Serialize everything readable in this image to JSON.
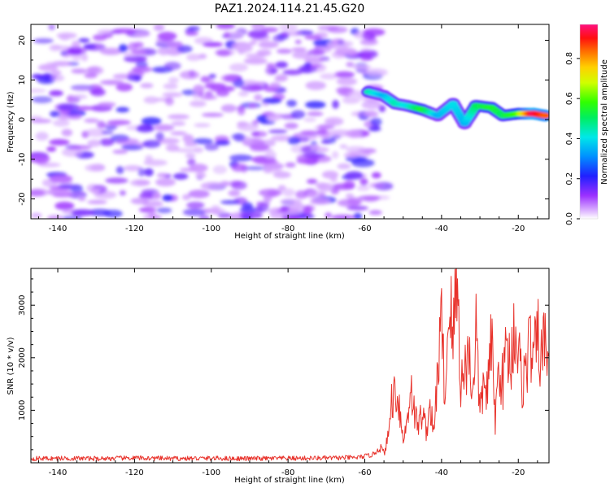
{
  "title": "PAZ1.2024.114.21.45.G20",
  "chart_data": [
    {
      "type": "heatmap",
      "xlabel": "Height of straight line (km)",
      "ylabel": "Frequency (Hz)",
      "xlim": [
        -147,
        -12
      ],
      "ylim": [
        -25,
        24
      ],
      "xticks": [
        -140,
        -120,
        -100,
        -80,
        -60,
        -40,
        -20
      ],
      "yticks": [
        -20,
        -10,
        0,
        10,
        20
      ],
      "colorbar": {
        "label": "Normalized spectral amplitude",
        "range": [
          0,
          0.97
        ],
        "ticks": [
          0.0,
          0.2,
          0.4,
          0.6,
          0.8
        ],
        "colormap": "gist_rainbow_r",
        "underflow": "white"
      },
      "noise_region": {
        "x": [
          -146,
          -55
        ],
        "y": [
          -25,
          24
        ],
        "typical_amplitude": [
          0.02,
          0.2
        ]
      },
      "signal_ridge": [
        {
          "x": -59,
          "y": 7,
          "amplitude": 0.45
        },
        {
          "x": -55,
          "y": 6,
          "amplitude": 0.35
        },
        {
          "x": -52,
          "y": 4,
          "amplitude": 0.45
        },
        {
          "x": -49,
          "y": 3.5,
          "amplitude": 0.4
        },
        {
          "x": -45,
          "y": 2.5,
          "amplitude": 0.55
        },
        {
          "x": -41,
          "y": 1,
          "amplitude": 0.35
        },
        {
          "x": -37,
          "y": 4,
          "amplitude": 0.4
        },
        {
          "x": -34,
          "y": -1,
          "amplitude": 0.35
        },
        {
          "x": -31,
          "y": 3.5,
          "amplitude": 0.5
        },
        {
          "x": -27,
          "y": 3,
          "amplitude": 0.55
        },
        {
          "x": -24,
          "y": 1,
          "amplitude": 0.5
        },
        {
          "x": -20,
          "y": 1.5,
          "amplitude": 0.6
        },
        {
          "x": -16,
          "y": 1.5,
          "amplitude": 0.95
        },
        {
          "x": -13,
          "y": 1,
          "amplitude": 0.85
        }
      ],
      "grid": false
    },
    {
      "type": "line",
      "xlabel": "Height of straight line (km)",
      "ylabel": "SNR (10 * v/v)",
      "xlim": [
        -147,
        -12
      ],
      "ylim": [
        0,
        3700
      ],
      "xticks": [
        -140,
        -120,
        -100,
        -80,
        -60,
        -40,
        -20
      ],
      "yticks": [
        1000,
        2000,
        3000
      ],
      "color": "#e8322b",
      "grid": false,
      "series": [
        {
          "x": [
            -147,
            -140,
            -130,
            -120,
            -110,
            -100,
            -90,
            -80,
            -70,
            -62,
            -58,
            -56,
            -55,
            -54,
            -53,
            -52,
            -51,
            -50,
            -49,
            -48,
            -47,
            -46,
            -45,
            -44,
            -43,
            -42,
            -41,
            -40,
            -39,
            -38,
            -37,
            -36,
            -35,
            -34,
            -33,
            -32,
            -31,
            -30,
            -29,
            -28,
            -27,
            -26,
            -25,
            -24,
            -23,
            -22,
            -21,
            -20,
            -19,
            -18,
            -17,
            -16,
            -15,
            -14,
            -13,
            -12
          ],
          "values": [
            80,
            85,
            80,
            90,
            80,
            85,
            80,
            85,
            90,
            100,
            150,
            300,
            180,
            450,
            1200,
            1400,
            1100,
            400,
            800,
            1500,
            900,
            700,
            1000,
            600,
            1100,
            500,
            1800,
            2600,
            1200,
            3300,
            2200,
            3700,
            1500,
            1700,
            2200,
            1300,
            2600,
            900,
            1500,
            1400,
            2300,
            800,
            1900,
            1500,
            2300,
            1800,
            2700,
            2100,
            1500,
            1800,
            2300,
            1900,
            2400,
            2000,
            2300,
            2100
          ]
        }
      ]
    }
  ]
}
